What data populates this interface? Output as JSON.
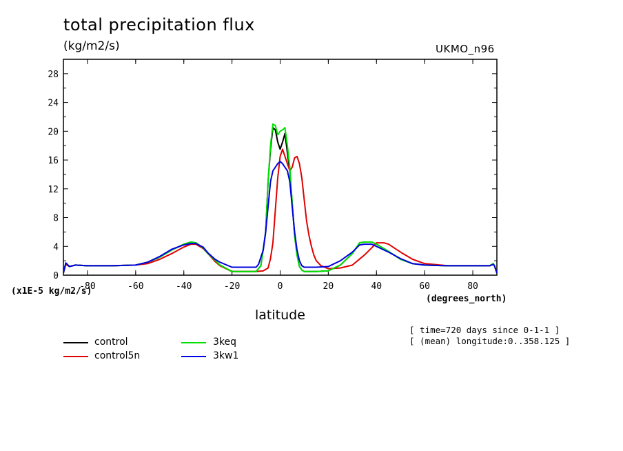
{
  "chart_data": {
    "type": "line",
    "title": "total precipitation flux",
    "units": "(kg/m2/s)",
    "model": "UKMO_n96",
    "ylabel_unit": "(x1E-5 kg/m2/s)",
    "xlabel": "latitude",
    "xlabel_unit": "(degrees_north)",
    "xlim": [
      -90,
      90
    ],
    "ylim": [
      0,
      30
    ],
    "xticks": [
      "-80",
      "-60",
      "-40",
      "-20",
      "0",
      "20",
      "40",
      "60",
      "80"
    ],
    "yticks": [
      "0",
      "4",
      "8",
      "12",
      "16",
      "20",
      "24",
      "28"
    ],
    "annotations": [
      "[ time=720 days since 0-1-1 ]",
      "[ (mean) longitude:0..358.125 ]"
    ],
    "series": [
      {
        "name": "control",
        "color": "#000000",
        "x": [
          -90,
          -89,
          -87.5,
          -85,
          -80,
          -70,
          -60,
          -55,
          -50,
          -45,
          -40,
          -37,
          -35,
          -32,
          -30,
          -27,
          -25,
          -20,
          -15,
          -10,
          -8,
          -6,
          -5,
          -4,
          -3,
          -2,
          -1,
          0,
          1,
          2,
          3,
          4,
          5,
          6,
          7,
          8,
          9,
          10,
          12,
          15,
          20,
          25,
          30,
          33,
          35,
          38,
          40,
          45,
          50,
          55,
          60,
          70,
          80,
          87,
          88.5,
          89,
          90
        ],
        "y": [
          0.3,
          1.7,
          1.2,
          1.4,
          1.3,
          1.3,
          1.4,
          1.8,
          2.5,
          3.5,
          4.3,
          4.6,
          4.5,
          3.8,
          3.0,
          2.1,
          1.4,
          0.5,
          0.5,
          0.5,
          1.3,
          6.0,
          13.0,
          17.5,
          20.5,
          20.2,
          18.5,
          17.5,
          18.5,
          19.7,
          17.0,
          14.5,
          10.0,
          5.5,
          2.8,
          1.2,
          0.7,
          0.5,
          0.5,
          0.5,
          0.6,
          1.4,
          3.0,
          4.5,
          4.6,
          4.6,
          4.3,
          3.3,
          2.2,
          1.6,
          1.4,
          1.3,
          1.3,
          1.3,
          1.6,
          1.3,
          0.3
        ]
      },
      {
        "name": "control5n",
        "color": "#e00000",
        "x": [
          -90,
          -89,
          -87.5,
          -85,
          -80,
          -70,
          -60,
          -55,
          -50,
          -45,
          -40,
          -37,
          -35,
          -32,
          -30,
          -27,
          -25,
          -20,
          -15,
          -10,
          -7,
          -5,
          -4,
          -3,
          -2,
          -1,
          0,
          1,
          2,
          3,
          4,
          5,
          6,
          7,
          8,
          9,
          10,
          11,
          12,
          13,
          14,
          15,
          17,
          20,
          25,
          30,
          35,
          38,
          40,
          43,
          45,
          50,
          55,
          60,
          70,
          80,
          87,
          88.5,
          89,
          90
        ],
        "y": [
          0.3,
          1.5,
          1.2,
          1.4,
          1.3,
          1.3,
          1.4,
          1.6,
          2.2,
          3.0,
          3.9,
          4.3,
          4.3,
          3.7,
          3.0,
          1.9,
          1.3,
          0.5,
          0.5,
          0.5,
          0.6,
          1.0,
          2.3,
          4.5,
          9.0,
          13.5,
          16.5,
          17.5,
          16.5,
          15.5,
          14.5,
          15.0,
          16.3,
          16.5,
          15.5,
          13.5,
          10.5,
          7.5,
          5.5,
          4.0,
          2.8,
          2.0,
          1.3,
          0.9,
          1.0,
          1.4,
          2.8,
          3.8,
          4.5,
          4.5,
          4.3,
          3.2,
          2.2,
          1.6,
          1.3,
          1.3,
          1.3,
          1.5,
          1.3,
          0.3
        ]
      },
      {
        "name": "3keq",
        "color": "#00e000",
        "x": [
          -90,
          -89,
          -87.5,
          -85,
          -80,
          -70,
          -60,
          -55,
          -50,
          -45,
          -40,
          -37,
          -35,
          -32,
          -30,
          -27,
          -25,
          -20,
          -15,
          -10,
          -8,
          -6,
          -5,
          -4,
          -3,
          -2,
          -1,
          0,
          1,
          2,
          3,
          4,
          5,
          6,
          7,
          8,
          9,
          10,
          12,
          15,
          20,
          25,
          30,
          33,
          35,
          38,
          40,
          45,
          50,
          55,
          60,
          70,
          80,
          87,
          88.5,
          89,
          90
        ],
        "y": [
          0.3,
          1.7,
          1.2,
          1.4,
          1.3,
          1.3,
          1.4,
          1.8,
          2.5,
          3.5,
          4.3,
          4.6,
          4.5,
          3.8,
          3.0,
          2.1,
          1.4,
          0.5,
          0.5,
          0.5,
          1.3,
          6.0,
          13.0,
          18.0,
          21.0,
          20.8,
          19.5,
          20.0,
          20.2,
          20.5,
          18.0,
          15.0,
          10.0,
          5.5,
          2.8,
          1.2,
          0.7,
          0.5,
          0.5,
          0.5,
          0.6,
          1.4,
          3.0,
          4.5,
          4.6,
          4.6,
          4.3,
          3.3,
          2.2,
          1.6,
          1.4,
          1.3,
          1.3,
          1.3,
          1.6,
          1.3,
          0.3
        ]
      },
      {
        "name": "3kw1",
        "color": "#0000e0",
        "x": [
          -90,
          -89,
          -87.5,
          -85,
          -80,
          -70,
          -60,
          -55,
          -50,
          -45,
          -40,
          -37,
          -35,
          -32,
          -30,
          -27,
          -25,
          -20,
          -15,
          -10,
          -9,
          -7,
          -6,
          -5,
          -4,
          -3,
          -2,
          -1,
          0,
          1,
          2,
          3,
          4,
          5,
          6,
          7,
          8,
          9,
          10,
          12,
          15,
          20,
          25,
          30,
          33,
          35,
          38,
          40,
          45,
          50,
          55,
          60,
          70,
          80,
          87,
          88.5,
          89,
          90
        ],
        "y": [
          0.3,
          1.7,
          1.2,
          1.4,
          1.3,
          1.3,
          1.4,
          1.8,
          2.6,
          3.6,
          4.2,
          4.4,
          4.4,
          3.9,
          3.1,
          2.2,
          1.8,
          1.1,
          1.1,
          1.1,
          1.5,
          3.5,
          6.0,
          9.5,
          13.0,
          14.5,
          15.0,
          15.5,
          15.8,
          15.5,
          15.0,
          14.5,
          13.0,
          9.5,
          6.0,
          3.5,
          2.0,
          1.3,
          1.1,
          1.1,
          1.1,
          1.2,
          2.0,
          3.2,
          4.2,
          4.3,
          4.3,
          4.0,
          3.2,
          2.3,
          1.6,
          1.4,
          1.3,
          1.3,
          1.3,
          1.5,
          1.3,
          0.3
        ]
      }
    ]
  }
}
